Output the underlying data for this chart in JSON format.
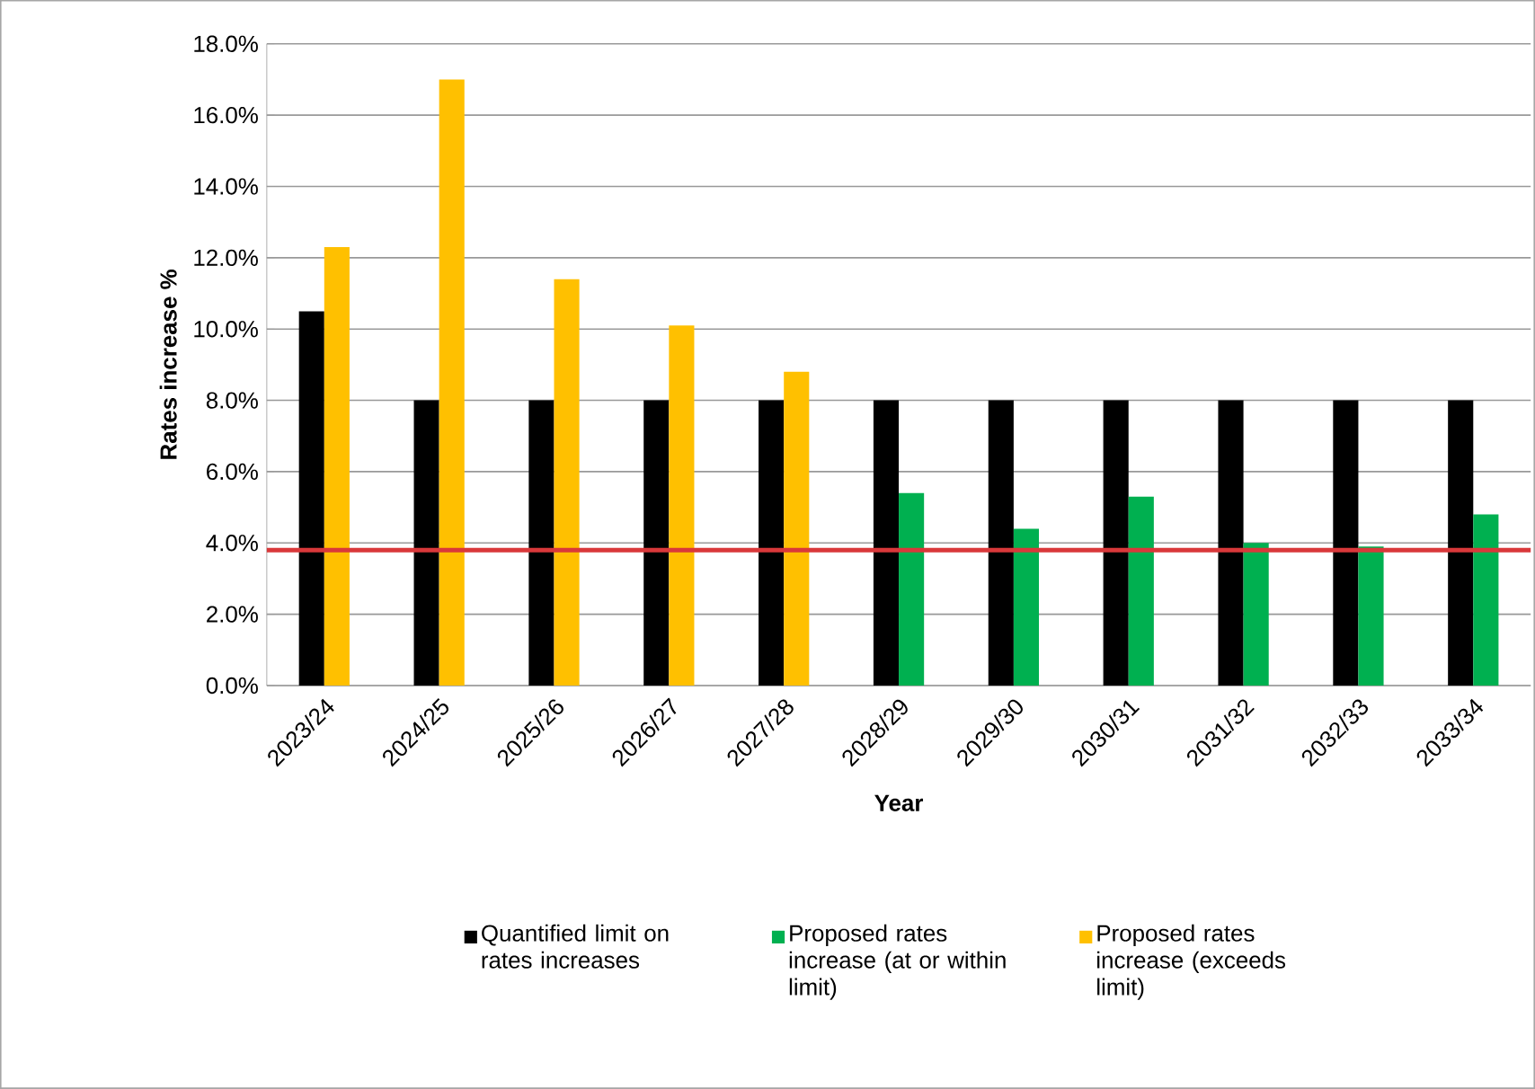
{
  "chart_data": {
    "type": "bar",
    "xlabel": "Year",
    "ylabel": "Rates increase  %",
    "categories": [
      "2023/24",
      "2024/25",
      "2025/26",
      "2026/27",
      "2027/28",
      "2028/29",
      "2029/30",
      "2030/31",
      "2031/32",
      "2032/33",
      "2033/34"
    ],
    "series": [
      {
        "name": "Quantified limit on rates increases",
        "color": "#000000",
        "values": [
          10.5,
          8,
          8,
          8,
          8,
          8,
          8,
          8,
          8,
          8,
          8
        ]
      },
      {
        "name": "Proposed rates increase (at or within limit)",
        "color": "#00b050",
        "values": [
          null,
          null,
          null,
          null,
          null,
          5.4,
          4.4,
          5.3,
          4.0,
          3.9,
          4.8
        ]
      },
      {
        "name": "Proposed rates increase (exceeds limit)",
        "color": "#ffc000",
        "values": [
          12.3,
          17.0,
          11.4,
          10.1,
          8.8,
          null,
          null,
          null,
          null,
          null,
          null
        ]
      }
    ],
    "ylim": [
      0,
      18
    ],
    "yticks": [
      {
        "value": 0,
        "label": "0.0%"
      },
      {
        "value": 2,
        "label": "2.0%"
      },
      {
        "value": 4,
        "label": "4.0%"
      },
      {
        "value": 6,
        "label": "6.0%"
      },
      {
        "value": 8,
        "label": "8.0%"
      },
      {
        "value": 10,
        "label": "10.0%"
      },
      {
        "value": 12,
        "label": "12.0%"
      },
      {
        "value": 14,
        "label": "14.0%"
      },
      {
        "value": 16,
        "label": "16.0%"
      },
      {
        "value": 18,
        "label": "18.0%"
      }
    ],
    "ref_lines": [
      {
        "axis": "y",
        "value": 3.8,
        "color": "#d9383a"
      }
    ],
    "grid": "y",
    "legend": "bottom"
  }
}
